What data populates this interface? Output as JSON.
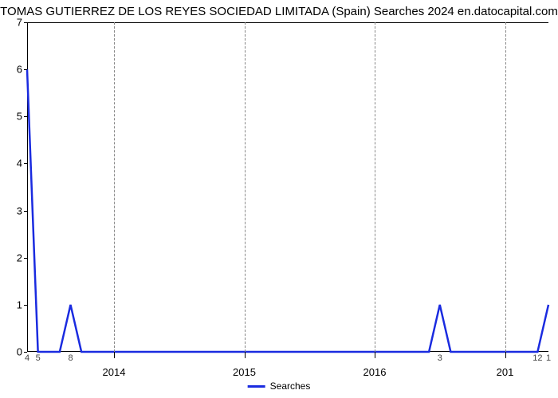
{
  "chart": {
    "type": "line",
    "title": "TOMAS GUTIERREZ DE LOS REYES SOCIEDAD LIMITADA (Spain) Searches 2024 en.datocapital.com",
    "title_fontsize": 15,
    "title_color": "#000000",
    "background_color": "#ffffff",
    "line_color": "#1a2be0",
    "line_width": 2.5,
    "grid_color": "#888888",
    "grid_dash": "4,4",
    "font_family": "Arial",
    "label_fontsize": 13,
    "minor_label_fontsize": 11,
    "y": {
      "min": 0,
      "max": 7,
      "ticks": [
        0,
        1,
        2,
        3,
        4,
        5,
        6,
        7
      ]
    },
    "x": {
      "index_min": 0,
      "index_max": 48,
      "major_gridlines": [
        {
          "index": 8,
          "label": "2014"
        },
        {
          "index": 20,
          "label": "2015"
        },
        {
          "index": 32,
          "label": "2016"
        },
        {
          "index": 44,
          "label": "2017_trim"
        }
      ],
      "minor_labels": [
        {
          "index": 0,
          "label": "4"
        },
        {
          "index": 1,
          "label": "5"
        },
        {
          "index": 4,
          "label": "8"
        },
        {
          "index": 38,
          "label": "3"
        },
        {
          "index": 47,
          "label": "12"
        },
        {
          "index": 48,
          "label": "1"
        }
      ]
    },
    "series": {
      "name": "Searches",
      "values": [
        6,
        0,
        0,
        0,
        1,
        0,
        0,
        0,
        0,
        0,
        0,
        0,
        0,
        0,
        0,
        0,
        0,
        0,
        0,
        0,
        0,
        0,
        0,
        0,
        0,
        0,
        0,
        0,
        0,
        0,
        0,
        0,
        0,
        0,
        0,
        0,
        0,
        0,
        1,
        0,
        0,
        0,
        0,
        0,
        0,
        0,
        0,
        0,
        1
      ]
    },
    "legend": {
      "label": "Searches",
      "swatch_color": "#1a2be0"
    },
    "labels": {
      "year_2014": "2014",
      "year_2015": "2015",
      "year_2016": "2016",
      "year_201_trim": "201"
    }
  }
}
